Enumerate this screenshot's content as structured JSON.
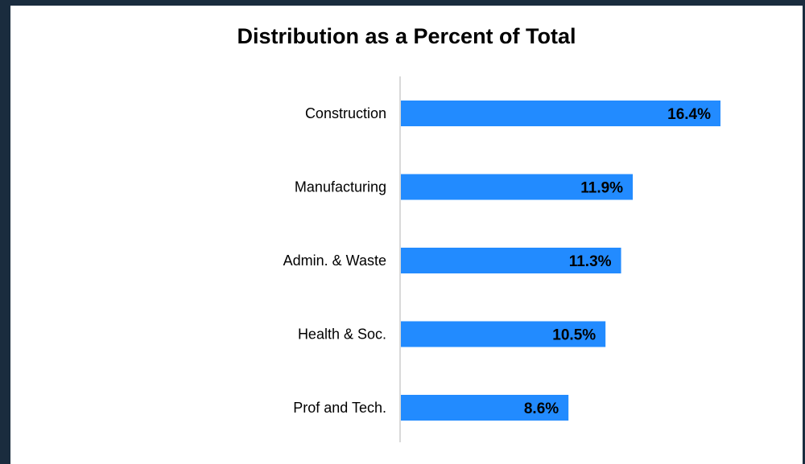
{
  "chart_data": {
    "type": "bar",
    "orientation": "horizontal",
    "title": "Distribution as a Percent of Total",
    "categories": [
      "Construction",
      "Manufacturing",
      "Admin. & Waste",
      "Health & Soc.",
      "Prof and Tech."
    ],
    "values": [
      16.4,
      11.9,
      11.3,
      10.5,
      8.6
    ],
    "data_labels": [
      "16.4%",
      "11.9%",
      "11.3%",
      "10.5%",
      "8.6%"
    ],
    "xlabel": "",
    "ylabel": "",
    "xlim": [
      0,
      17
    ],
    "grid": false,
    "legend": "none",
    "bar_color": "#228BFF",
    "label_color": "#000000",
    "axis_color": "#D9D9D9"
  }
}
